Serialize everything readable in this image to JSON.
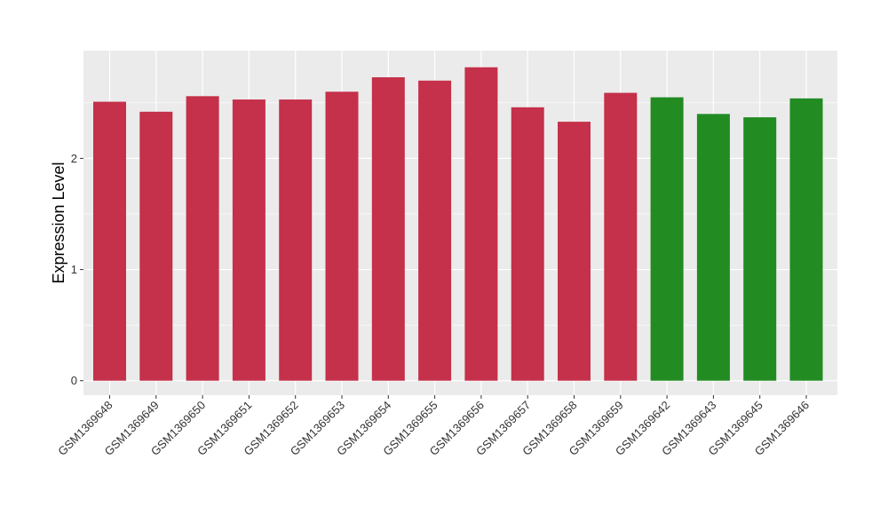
{
  "chart_data": {
    "type": "bar",
    "title": "",
    "xlabel": "",
    "ylabel": "Expression Level",
    "ylim": [
      -0.13,
      2.97
    ],
    "yticks": [
      0,
      1,
      2
    ],
    "grid": true,
    "legend": "none",
    "categories": [
      "GSM1369648",
      "GSM1369649",
      "GSM1369650",
      "GSM1369651",
      "GSM1369652",
      "GSM1369653",
      "GSM1369654",
      "GSM1369655",
      "GSM1369656",
      "GSM1369657",
      "GSM1369658",
      "GSM1369659",
      "GSM1369642",
      "GSM1369643",
      "GSM1369645",
      "GSM1369646"
    ],
    "values": [
      2.51,
      2.42,
      2.56,
      2.53,
      2.53,
      2.6,
      2.73,
      2.7,
      2.82,
      2.46,
      2.33,
      2.59,
      2.55,
      2.4,
      2.37,
      2.54
    ],
    "groups": [
      0,
      0,
      0,
      0,
      0,
      0,
      0,
      0,
      0,
      0,
      0,
      0,
      1,
      1,
      1,
      1
    ],
    "group_colors": [
      "#C5304A",
      "#228B22"
    ],
    "panel_background": "#EBEBEB",
    "gridline_color": "#FFFFFF"
  }
}
